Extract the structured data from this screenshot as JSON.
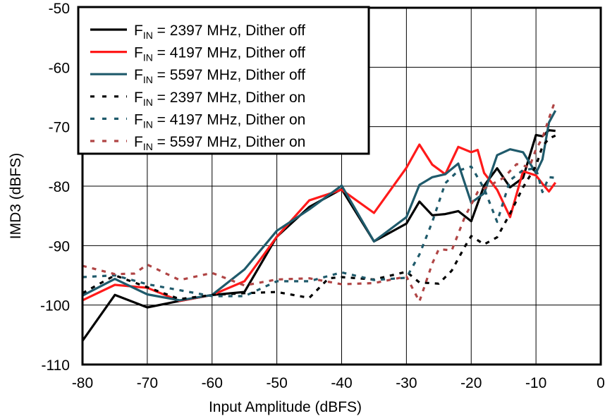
{
  "chart_data": {
    "type": "line",
    "xlabel": "Input Amplitude (dBFS)",
    "ylabel": "IMD3 (dBFS)",
    "xlim": [
      -80,
      0
    ],
    "ylim": [
      -110,
      -50
    ],
    "xticks": [
      -80,
      -70,
      -60,
      -50,
      -40,
      -30,
      -20,
      -10,
      0
    ],
    "yticks": [
      -110,
      -100,
      -90,
      -80,
      -70,
      -60,
      -50
    ],
    "x_tick_labels": [
      "-80",
      "-70",
      "-60",
      "-50",
      "-40",
      "-30",
      "-20",
      "-10",
      "0"
    ],
    "y_tick_labels": [
      "-110",
      "-100",
      "-90",
      "-80",
      "-70",
      "-60",
      "-50"
    ],
    "grid": true,
    "legend_position": "top-left",
    "series": [
      {
        "name": "FIN = 2397 MHz, Dither off",
        "legend_main": "F",
        "legend_sub": "IN",
        "legend_rest": " = 2397 MHz, Dither off",
        "color": "#000000",
        "style": "solid",
        "points": [
          [
            -80,
            -106
          ],
          [
            -75,
            -98.3
          ],
          [
            -70,
            -100.4
          ],
          [
            -65,
            -99.3
          ],
          [
            -60,
            -98.3
          ],
          [
            -55,
            -97.8
          ],
          [
            -50,
            -88.5
          ],
          [
            -45,
            -83.5
          ],
          [
            -40,
            -80.5
          ],
          [
            -35,
            -89.3
          ],
          [
            -30,
            -86.3
          ],
          [
            -28,
            -82.6
          ],
          [
            -26,
            -84.9
          ],
          [
            -24,
            -84.7
          ],
          [
            -22,
            -84.2
          ],
          [
            -20,
            -85.9
          ],
          [
            -18,
            -79.9
          ],
          [
            -16,
            -77
          ],
          [
            -14,
            -80.2
          ],
          [
            -12,
            -78.6
          ],
          [
            -10,
            -71.4
          ],
          [
            -9,
            -71.6
          ],
          [
            -8,
            -70.6
          ],
          [
            -7,
            -70.7
          ]
        ]
      },
      {
        "name": "FIN = 4197 MHz, Dither off",
        "legend_main": "F",
        "legend_sub": "IN",
        "legend_rest": " = 4197 MHz, Dither off",
        "color": "#ff1a1a",
        "style": "solid",
        "points": [
          [
            -80,
            -99.2
          ],
          [
            -75,
            -96.6
          ],
          [
            -70,
            -97.1
          ],
          [
            -65,
            -99.3
          ],
          [
            -60,
            -98.3
          ],
          [
            -55,
            -96
          ],
          [
            -50,
            -88.5
          ],
          [
            -45,
            -82.4
          ],
          [
            -40,
            -80.6
          ],
          [
            -35,
            -84.5
          ],
          [
            -30,
            -76.9
          ],
          [
            -28,
            -73
          ],
          [
            -26,
            -76.4
          ],
          [
            -24,
            -78
          ],
          [
            -22,
            -73.4
          ],
          [
            -20,
            -74.3
          ],
          [
            -19,
            -73.9
          ],
          [
            -18,
            -77.8
          ],
          [
            -16,
            -80.6
          ],
          [
            -14,
            -85.2
          ],
          [
            -12,
            -77.5
          ],
          [
            -10,
            -78.2
          ],
          [
            -9,
            -79.6
          ],
          [
            -8,
            -80.9
          ],
          [
            -7,
            -79.4
          ]
        ]
      },
      {
        "name": "FIN = 5597 MHz, Dither off",
        "legend_main": "F",
        "legend_sub": "IN",
        "legend_rest": " = 5597 MHz, Dither off",
        "color": "#1f5a6b",
        "style": "solid",
        "points": [
          [
            -80,
            -98.4
          ],
          [
            -75,
            -95.6
          ],
          [
            -70,
            -98.2
          ],
          [
            -65,
            -99.2
          ],
          [
            -60,
            -98.3
          ],
          [
            -55,
            -94
          ],
          [
            -50,
            -87.5
          ],
          [
            -45,
            -83.9
          ],
          [
            -40,
            -79.9
          ],
          [
            -35,
            -89.3
          ],
          [
            -30,
            -85.2
          ],
          [
            -28,
            -79.8
          ],
          [
            -26,
            -78.5
          ],
          [
            -24,
            -78
          ],
          [
            -22,
            -76.2
          ],
          [
            -20,
            -82.8
          ],
          [
            -18,
            -81.2
          ],
          [
            -16,
            -74.8
          ],
          [
            -14,
            -73.8
          ],
          [
            -12,
            -74.3
          ],
          [
            -10,
            -77.8
          ],
          [
            -9,
            -75.5
          ],
          [
            -8,
            -69.3
          ],
          [
            -7,
            -67.3
          ]
        ]
      },
      {
        "name": "FIN = 2397 MHz, Dither on",
        "legend_main": "F",
        "legend_sub": "IN",
        "legend_rest": " = 2397 MHz, Dither on",
        "color": "#000000",
        "style": "dotted",
        "points": [
          [
            -80,
            -98
          ],
          [
            -75,
            -95
          ],
          [
            -70,
            -97
          ],
          [
            -65,
            -99
          ],
          [
            -60,
            -98.3
          ],
          [
            -55,
            -98
          ],
          [
            -50,
            -97.8
          ],
          [
            -45,
            -98.8
          ],
          [
            -42,
            -95.5
          ],
          [
            -40,
            -95.3
          ],
          [
            -35,
            -95.7
          ],
          [
            -30,
            -94.4
          ],
          [
            -28,
            -96.2
          ],
          [
            -25,
            -96.4
          ],
          [
            -23,
            -94.2
          ],
          [
            -21,
            -90.2
          ],
          [
            -20,
            -88.4
          ],
          [
            -18,
            -89.8
          ],
          [
            -16,
            -88.6
          ],
          [
            -14,
            -84.6
          ],
          [
            -12,
            -80.2
          ],
          [
            -10,
            -76.6
          ],
          [
            -9,
            -73.3
          ],
          [
            -8,
            -72
          ],
          [
            -7,
            -71.5
          ]
        ]
      },
      {
        "name": "FIN = 4197 MHz, Dither on",
        "legend_main": "F",
        "legend_sub": "IN",
        "legend_rest": " = 4197 MHz, Dither on",
        "color": "#1f5a6b",
        "style": "dotted",
        "points": [
          [
            -80,
            -95.3
          ],
          [
            -75,
            -95
          ],
          [
            -70,
            -96.5
          ],
          [
            -65,
            -97.5
          ],
          [
            -60,
            -98.5
          ],
          [
            -55,
            -98.5
          ],
          [
            -50,
            -96
          ],
          [
            -45,
            -96
          ],
          [
            -40,
            -94.5
          ],
          [
            -35,
            -95.8
          ],
          [
            -30,
            -95.4
          ],
          [
            -28,
            -91.5
          ],
          [
            -26,
            -86
          ],
          [
            -24,
            -79.5
          ],
          [
            -22,
            -77.4
          ],
          [
            -20,
            -76.7
          ],
          [
            -18,
            -80.4
          ],
          [
            -16,
            -86
          ],
          [
            -14,
            -79
          ],
          [
            -12,
            -77.3
          ],
          [
            -10,
            -77
          ],
          [
            -9,
            -81
          ],
          [
            -8,
            -78.5
          ],
          [
            -7,
            -78.6
          ]
        ]
      },
      {
        "name": "FIN = 5597 MHz, Dither on",
        "legend_main": "F",
        "legend_sub": "IN",
        "legend_rest": " = 5597 MHz, Dither on",
        "color": "#b04545",
        "style": "dotted",
        "points": [
          [
            -80,
            -93.4
          ],
          [
            -75,
            -94.8
          ],
          [
            -72,
            -94.7
          ],
          [
            -70,
            -93.2
          ],
          [
            -65,
            -95.8
          ],
          [
            -60,
            -94.6
          ],
          [
            -55,
            -96.7
          ],
          [
            -50,
            -95.7
          ],
          [
            -45,
            -95.5
          ],
          [
            -40,
            -96.5
          ],
          [
            -35,
            -96.3
          ],
          [
            -30,
            -95.2
          ],
          [
            -28,
            -99.4
          ],
          [
            -26,
            -93
          ],
          [
            -25,
            -90.6
          ],
          [
            -23,
            -90.8
          ],
          [
            -21,
            -85.2
          ],
          [
            -19,
            -81
          ],
          [
            -17,
            -79.8
          ],
          [
            -15,
            -78.6
          ],
          [
            -13,
            -76.3
          ],
          [
            -11,
            -76.8
          ],
          [
            -10,
            -73.8
          ],
          [
            -9,
            -71.9
          ],
          [
            -8,
            -68.6
          ],
          [
            -7,
            -65.5
          ]
        ]
      }
    ]
  }
}
